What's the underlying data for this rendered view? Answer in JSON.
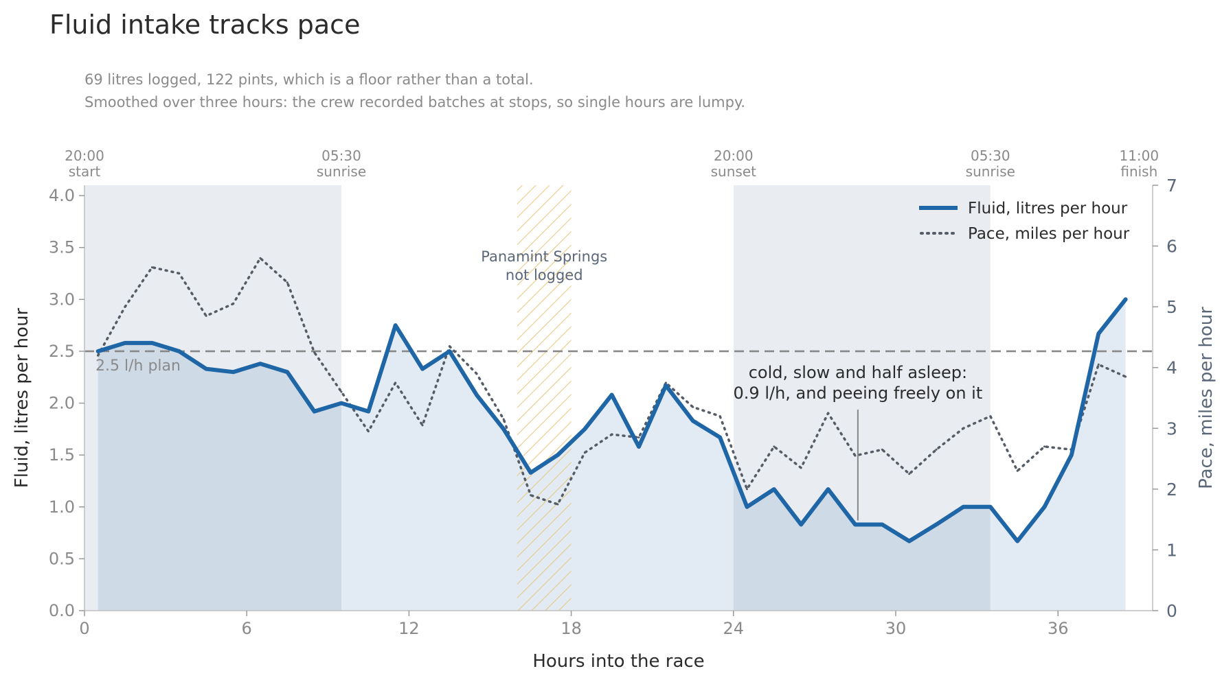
{
  "title": "Fluid intake tracks pace",
  "subtitle_lines": [
    "69 litres logged, 122 pints, which is a floor rather than a total.",
    "Smoothed over three hours: the crew recorded batches at stops, so single hours are lumpy."
  ],
  "chart_data": {
    "type": "line",
    "xlabel": "Hours into the race",
    "ylabel": "Fluid, litres per hour",
    "y2label": "Pace, miles per hour",
    "xlim": [
      0,
      39.5
    ],
    "ylim": [
      0,
      4.1
    ],
    "y2lim": [
      0,
      7
    ],
    "xticks": [
      0,
      6,
      12,
      18,
      24,
      30,
      36
    ],
    "yticks": [
      0,
      0.5,
      1.0,
      1.5,
      2.0,
      2.5,
      3.0,
      3.5,
      4.0
    ],
    "y2ticks": [
      0,
      1,
      2,
      3,
      4,
      5,
      6,
      7
    ],
    "top_axis_labels": [
      {
        "hour": 0,
        "time": "20:00",
        "label": "start"
      },
      {
        "hour": 9.5,
        "time": "05:30",
        "label": "sunrise"
      },
      {
        "hour": 24,
        "time": "20:00",
        "label": "sunset"
      },
      {
        "hour": 33.5,
        "time": "05:30",
        "label": "sunrise"
      },
      {
        "hour": 39,
        "time": "11:00",
        "label": "finish"
      }
    ],
    "night_periods": [
      [
        0,
        9.5
      ],
      [
        24,
        33.5
      ]
    ],
    "gap": {
      "start": 16,
      "end": 18,
      "label_lines": [
        "Panamint Springs",
        "not logged"
      ]
    },
    "reference_line": {
      "value": 2.5,
      "label": "2.5 l/h plan"
    },
    "annotation": {
      "x": 28.6,
      "y": 0.87,
      "label_lines": [
        "cold, slow and half asleep:",
        "0.9 l/h, and peeing freely on it"
      ]
    },
    "legend_position": "top-right",
    "series": [
      {
        "name": "Fluid, litres per hour",
        "axis": "left",
        "color": "#1f66a6",
        "style": "solid",
        "x": [
          0.5,
          1.5,
          2.5,
          3.5,
          4.5,
          5.5,
          6.5,
          7.5,
          8.5,
          9.5,
          10.5,
          11.5,
          12.5,
          13.5,
          14.5,
          15.5,
          16.5,
          17.5,
          18.5,
          19.5,
          20.5,
          21.5,
          22.5,
          23.5,
          24.5,
          25.5,
          26.5,
          27.5,
          28.5,
          29.5,
          30.5,
          31.5,
          32.5,
          33.5,
          34.5,
          35.5,
          36.5,
          37.5,
          38.5
        ],
        "values": [
          2.5,
          2.58,
          2.58,
          2.5,
          2.33,
          2.3,
          2.38,
          2.3,
          1.92,
          2.0,
          1.92,
          2.75,
          2.33,
          2.5,
          2.08,
          1.75,
          1.33,
          1.5,
          1.75,
          2.08,
          1.58,
          2.17,
          1.83,
          1.67,
          1.0,
          1.17,
          0.83,
          1.17,
          0.83,
          0.83,
          0.67,
          0.83,
          1.0,
          1.0,
          0.67,
          1.0,
          1.5,
          2.67,
          3.0
        ]
      },
      {
        "name": "Pace, miles per hour",
        "axis": "right",
        "color": "#555c66",
        "style": "dotted",
        "x": [
          0.5,
          1.5,
          2.5,
          3.5,
          4.5,
          5.5,
          6.5,
          7.5,
          8.5,
          9.5,
          10.5,
          11.5,
          12.5,
          13.5,
          14.5,
          15.5,
          16.5,
          17.5,
          18.5,
          19.5,
          20.5,
          21.5,
          22.5,
          23.5,
          24.5,
          25.5,
          26.5,
          27.5,
          28.5,
          29.5,
          30.5,
          31.5,
          32.5,
          33.5,
          34.5,
          35.5,
          36.5,
          37.5,
          38.5
        ],
        "values": [
          4.2,
          5.0,
          5.65,
          5.55,
          4.85,
          5.05,
          5.8,
          5.4,
          4.25,
          3.6,
          2.95,
          3.75,
          3.05,
          4.35,
          3.9,
          3.15,
          1.9,
          1.75,
          2.6,
          2.9,
          2.85,
          3.75,
          3.35,
          3.2,
          2.0,
          2.7,
          2.35,
          3.25,
          2.55,
          2.65,
          2.25,
          2.65,
          3.0,
          3.2,
          2.3,
          2.7,
          2.65,
          4.05,
          3.85
        ]
      }
    ]
  }
}
